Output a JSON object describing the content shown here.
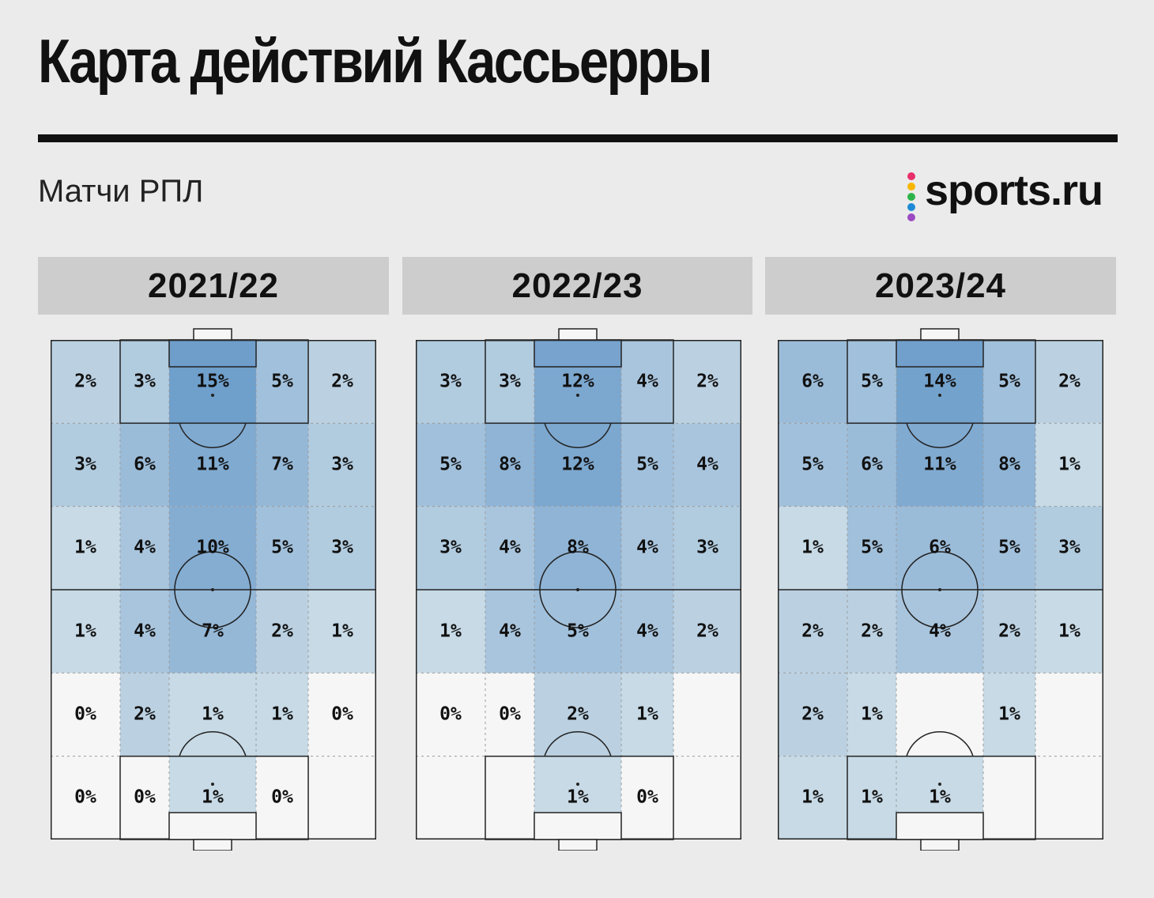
{
  "header": {
    "title": "Карта действий Кассьерры",
    "subtitle": "Матчи РПЛ",
    "logo_text": "sports.ru",
    "logo_dot_colors": [
      "#e8306a",
      "#f7b500",
      "#2db34a",
      "#1e8ad6",
      "#9b4ac2"
    ]
  },
  "colors": {
    "background": "#ebebeb",
    "season_header": "#cdcdcd",
    "heat_low": "#e6eef0",
    "heat_high": "#6f9fcb",
    "line": "#222222"
  },
  "chart_data": [
    {
      "type": "heatmap",
      "title": "2021/22",
      "columns": 5,
      "rows": 6,
      "values": [
        [
          2,
          3,
          15,
          5,
          2
        ],
        [
          3,
          6,
          11,
          7,
          3
        ],
        [
          1,
          4,
          10,
          5,
          3
        ],
        [
          1,
          4,
          7,
          2,
          1
        ],
        [
          0,
          2,
          1,
          1,
          0
        ],
        [
          0,
          0,
          1,
          0,
          null
        ]
      ],
      "labels": [
        [
          "2%",
          "3%",
          "15%",
          "5%",
          "2%"
        ],
        [
          "3%",
          "6%",
          "11%",
          "7%",
          "3%"
        ],
        [
          "1%",
          "4%",
          "10%",
          "5%",
          "3%"
        ],
        [
          "1%",
          "4%",
          "7%",
          "2%",
          "1%"
        ],
        [
          "0%",
          "2%",
          "1%",
          "1%",
          "0%"
        ],
        [
          "0%",
          "0%",
          "1%",
          "0%",
          ""
        ]
      ]
    },
    {
      "type": "heatmap",
      "title": "2022/23",
      "columns": 5,
      "rows": 6,
      "values": [
        [
          3,
          3,
          12,
          4,
          2
        ],
        [
          5,
          8,
          12,
          5,
          4
        ],
        [
          3,
          4,
          8,
          4,
          3
        ],
        [
          1,
          4,
          5,
          4,
          2
        ],
        [
          0,
          0,
          2,
          1,
          null
        ],
        [
          null,
          null,
          1,
          0,
          null
        ]
      ],
      "labels": [
        [
          "3%",
          "3%",
          "12%",
          "4%",
          "2%"
        ],
        [
          "5%",
          "8%",
          "12%",
          "5%",
          "4%"
        ],
        [
          "3%",
          "4%",
          "8%",
          "4%",
          "3%"
        ],
        [
          "1%",
          "4%",
          "5%",
          "4%",
          "2%"
        ],
        [
          "0%",
          "0%",
          "2%",
          "1%",
          ""
        ],
        [
          "",
          "",
          "1%",
          "0%",
          ""
        ]
      ]
    },
    {
      "type": "heatmap",
      "title": "2023/24",
      "columns": 5,
      "rows": 6,
      "values": [
        [
          6,
          5,
          14,
          5,
          2
        ],
        [
          5,
          6,
          11,
          8,
          1
        ],
        [
          1,
          5,
          6,
          5,
          3
        ],
        [
          2,
          2,
          4,
          2,
          1
        ],
        [
          2,
          1,
          null,
          1,
          null
        ],
        [
          1,
          1,
          1,
          null,
          null
        ]
      ],
      "labels": [
        [
          "6%",
          "5%",
          "14%",
          "5%",
          "2%"
        ],
        [
          "5%",
          "6%",
          "11%",
          "8%",
          "1%"
        ],
        [
          "1%",
          "5%",
          "6%",
          "5%",
          "3%"
        ],
        [
          "2%",
          "2%",
          "4%",
          "2%",
          "1%"
        ],
        [
          "2%",
          "1%",
          "",
          "1%",
          ""
        ],
        [
          "1%",
          "1%",
          "1%",
          "",
          ""
        ]
      ]
    }
  ]
}
